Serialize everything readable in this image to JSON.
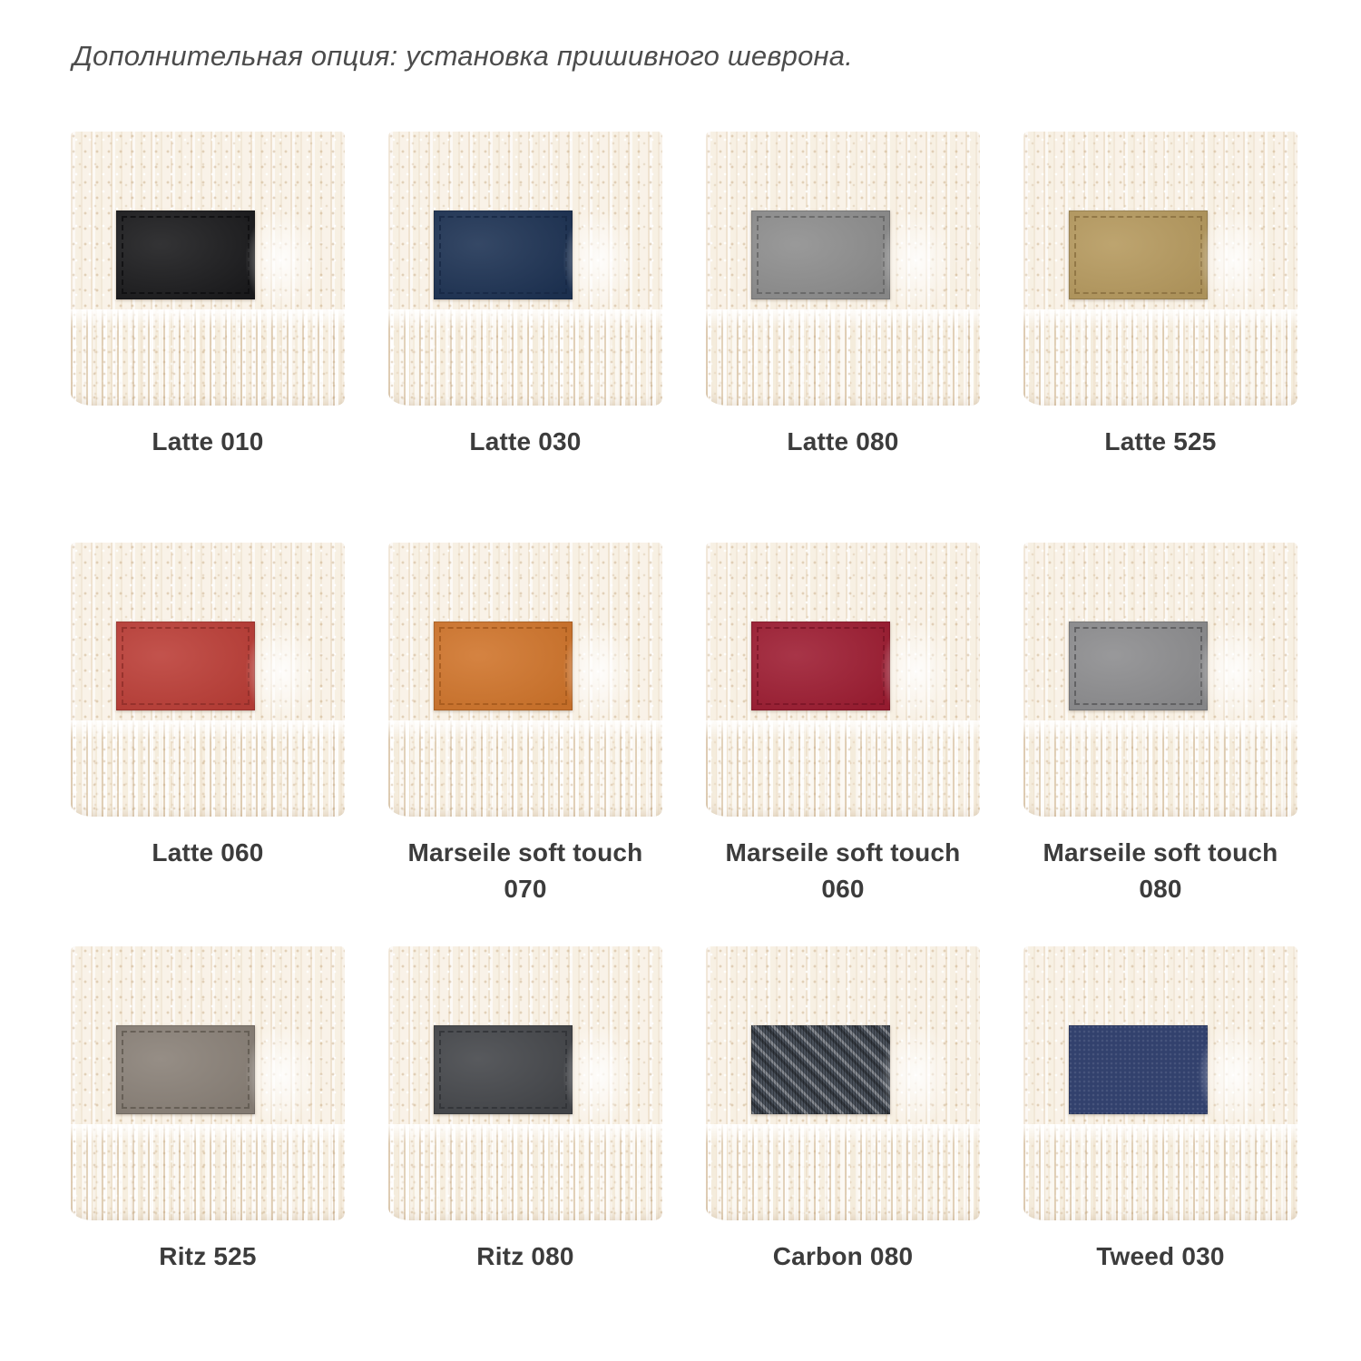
{
  "header": {
    "note": "Дополнительная опция: установка пришивного шеврона."
  },
  "swatches": [
    {
      "line1": "Latte 010",
      "line2": "",
      "color": "#1c1c1e",
      "stitch": "#0e0e10",
      "texture": "plain"
    },
    {
      "line1": "Latte 030",
      "line2": "",
      "color": "#1e3354",
      "stitch": "#172845",
      "texture": "plain"
    },
    {
      "line1": "Latte 080",
      "line2": "",
      "color": "#8e8e8e",
      "stitch": "#646464",
      "texture": "plain"
    },
    {
      "line1": "Latte 525",
      "line2": "",
      "color": "#b69a5f",
      "stitch": "#8a7040",
      "texture": "plain"
    },
    {
      "line1": "Latte 060",
      "line2": "",
      "color": "#bc3f38",
      "stitch": "#8f2e29",
      "texture": "plain"
    },
    {
      "line1": "Marseile soft touch",
      "line2": "070",
      "color": "#d0752c",
      "stitch": "#a3581c",
      "texture": "plain"
    },
    {
      "line1": "Marseile soft touch",
      "line2": "060",
      "color": "#9e1e33",
      "stitch": "#7a1426",
      "texture": "plain"
    },
    {
      "line1": "Marseile soft touch",
      "line2": "080",
      "color": "#8d8d8f",
      "stitch": "#58585a",
      "texture": "plain"
    },
    {
      "line1": "Ritz 525",
      "line2": "",
      "color": "#8a8178",
      "stitch": "#5f584f",
      "texture": "plain"
    },
    {
      "line1": "Ritz 080",
      "line2": "",
      "color": "#45474b",
      "stitch": "#303236",
      "texture": "plain"
    },
    {
      "line1": "Carbon 080",
      "line2": "",
      "color": "#49505a",
      "stitch": "",
      "texture": "carbon"
    },
    {
      "line1": "Tweed 030",
      "line2": "",
      "color": "#32416d",
      "stitch": "",
      "texture": "tweed"
    }
  ]
}
